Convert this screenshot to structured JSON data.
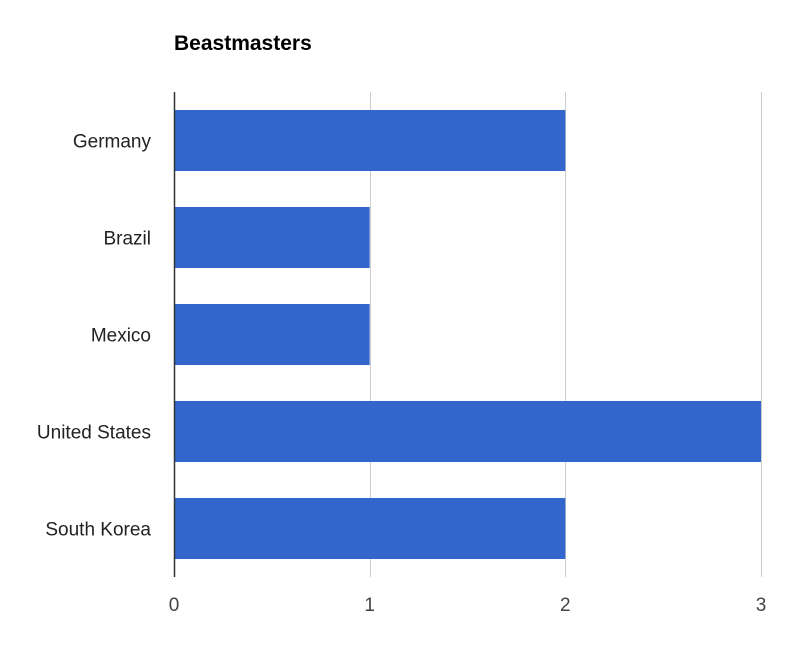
{
  "chart_data": {
    "type": "bar",
    "orientation": "horizontal",
    "title": "Beastmasters",
    "xlabel": "",
    "ylabel": "",
    "categories": [
      "Germany",
      "Brazil",
      "Mexico",
      "United States",
      "South Korea"
    ],
    "values": [
      2,
      1,
      1,
      3,
      2
    ],
    "xlim": [
      0,
      3
    ],
    "x_ticks": [
      "0",
      "1",
      "2",
      "3"
    ],
    "grid": true,
    "legend": "none",
    "colors": {
      "bar": "#3366cc",
      "grid": "#cccccc",
      "axis": "#333333",
      "label": "#222222"
    }
  }
}
